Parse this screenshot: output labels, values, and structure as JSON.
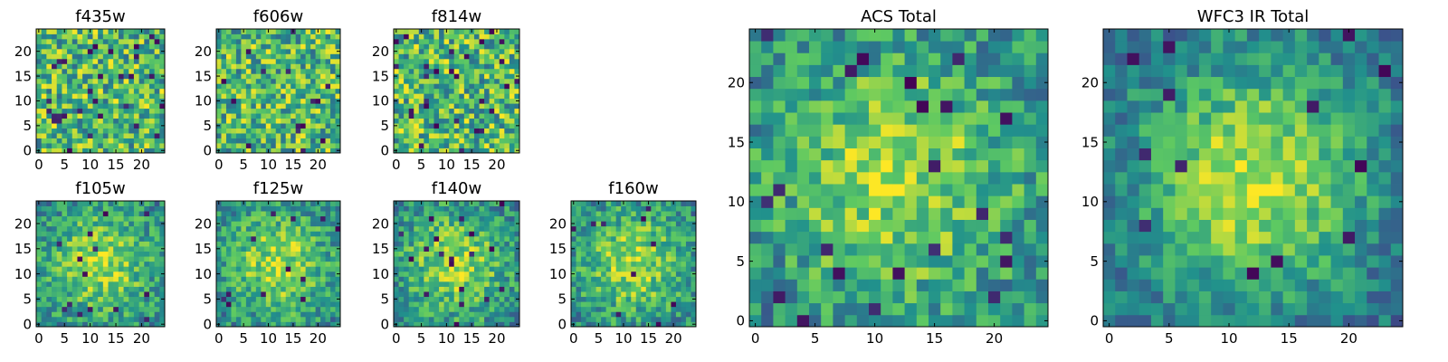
{
  "figure": {
    "colormap": "viridis",
    "colormap_stops": [
      "#440154",
      "#3b528b",
      "#21918c",
      "#5ec962",
      "#fde725"
    ]
  },
  "chart_data": [
    {
      "type": "heatmap",
      "title": "f435w",
      "grid_size": [
        25,
        25
      ],
      "xlim": [
        0,
        24
      ],
      "ylim": [
        0,
        24
      ],
      "x_ticks": [
        0,
        5,
        10,
        15,
        20
      ],
      "y_ticks": [
        0,
        5,
        10,
        15,
        20
      ],
      "pattern": "uniform-noise",
      "seed": 101,
      "dark_fraction": 0.05
    },
    {
      "type": "heatmap",
      "title": "f606w",
      "grid_size": [
        25,
        25
      ],
      "xlim": [
        0,
        24
      ],
      "ylim": [
        0,
        24
      ],
      "x_ticks": [
        0,
        5,
        10,
        15,
        20
      ],
      "y_ticks": [
        0,
        5,
        10,
        15,
        20
      ],
      "pattern": "uniform-noise",
      "seed": 202,
      "dark_fraction": 0.04
    },
    {
      "type": "heatmap",
      "title": "f814w",
      "grid_size": [
        25,
        25
      ],
      "xlim": [
        0,
        24
      ],
      "ylim": [
        0,
        24
      ],
      "x_ticks": [
        0,
        5,
        10,
        15,
        20
      ],
      "y_ticks": [
        0,
        5,
        10,
        15,
        20
      ],
      "pattern": "uniform-noise",
      "seed": 303,
      "dark_fraction": 0.05
    },
    {
      "type": "heatmap",
      "title": "f105w",
      "grid_size": [
        25,
        25
      ],
      "xlim": [
        0,
        24
      ],
      "ylim": [
        0,
        24
      ],
      "x_ticks": [
        0,
        5,
        10,
        15,
        20
      ],
      "y_ticks": [
        0,
        5,
        10,
        15,
        20
      ],
      "pattern": "central-bright",
      "seed": 404,
      "dark_fraction": 0.02
    },
    {
      "type": "heatmap",
      "title": "f125w",
      "grid_size": [
        25,
        25
      ],
      "xlim": [
        0,
        24
      ],
      "ylim": [
        0,
        24
      ],
      "x_ticks": [
        0,
        5,
        10,
        15,
        20
      ],
      "y_ticks": [
        0,
        5,
        10,
        15,
        20
      ],
      "pattern": "central-bright",
      "seed": 505,
      "dark_fraction": 0.03
    },
    {
      "type": "heatmap",
      "title": "f140w",
      "grid_size": [
        25,
        25
      ],
      "xlim": [
        0,
        24
      ],
      "ylim": [
        0,
        24
      ],
      "x_ticks": [
        0,
        5,
        10,
        15,
        20
      ],
      "y_ticks": [
        0,
        5,
        10,
        15,
        20
      ],
      "pattern": "central-bright",
      "seed": 606,
      "dark_fraction": 0.03
    },
    {
      "type": "heatmap",
      "title": "f160w",
      "grid_size": [
        25,
        25
      ],
      "xlim": [
        0,
        24
      ],
      "ylim": [
        0,
        24
      ],
      "x_ticks": [
        0,
        5,
        10,
        15,
        20
      ],
      "y_ticks": [
        0,
        5,
        10,
        15,
        20
      ],
      "pattern": "central-bright",
      "seed": 707,
      "dark_fraction": 0.02
    },
    {
      "type": "heatmap",
      "title": "ACS Total",
      "grid_size": [
        25,
        25
      ],
      "xlim": [
        0,
        24
      ],
      "ylim": [
        0,
        24
      ],
      "x_ticks": [
        0,
        5,
        10,
        15,
        20
      ],
      "y_ticks": [
        0,
        5,
        10,
        15,
        20
      ],
      "pattern": "central-bright",
      "seed": 808,
      "dark_fraction": 0.03
    },
    {
      "type": "heatmap",
      "title": "WFC3 IR Total",
      "grid_size": [
        25,
        25
      ],
      "xlim": [
        0,
        24
      ],
      "ylim": [
        0,
        24
      ],
      "x_ticks": [
        0,
        5,
        10,
        15,
        20
      ],
      "y_ticks": [
        0,
        5,
        10,
        15,
        20
      ],
      "pattern": "central-bright-strong",
      "seed": 909,
      "dark_fraction": 0.02
    }
  ]
}
